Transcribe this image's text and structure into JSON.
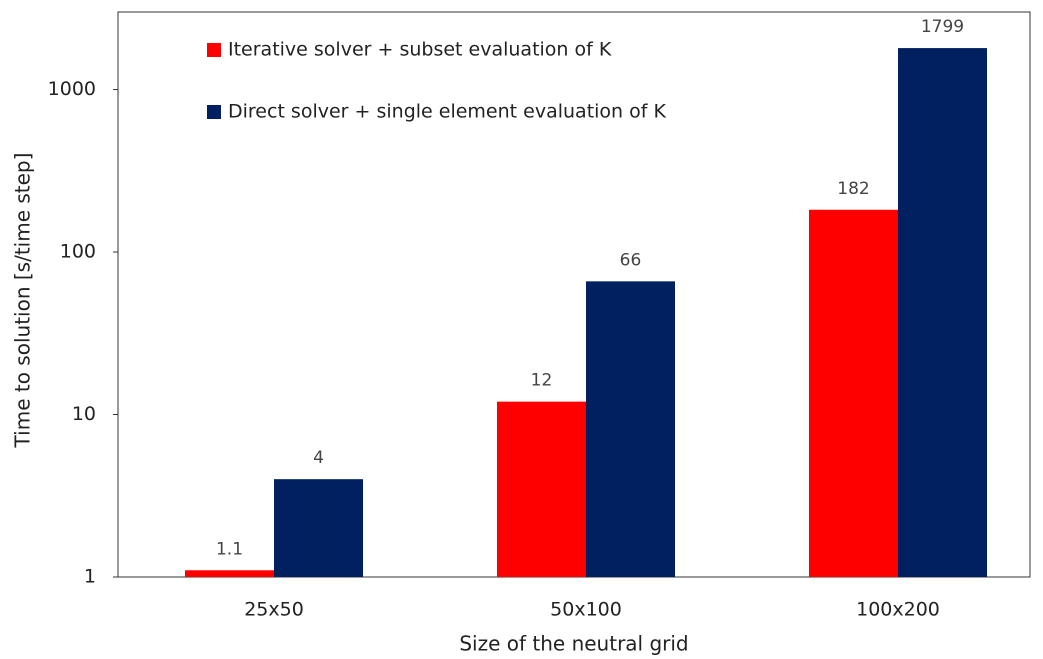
{
  "chart_data": {
    "type": "bar",
    "log_y": true,
    "x_label": "Size of the neutral grid",
    "y_label": "Time to solution [s/time step]",
    "categories": [
      "25x50",
      "50x100",
      "100x200"
    ],
    "series": [
      {
        "name": "Iterative solver + subset evaluation of K",
        "color": "#ff0000",
        "values": [
          1.1,
          12,
          182
        ]
      },
      {
        "name": "Direct solver + single element evaluation of K",
        "color": "#002060",
        "values": [
          4,
          66,
          1799
        ]
      }
    ],
    "ylim": [
      1,
      3000
    ],
    "yticks": [
      1,
      10,
      100,
      1000
    ],
    "legend": "upper left"
  }
}
